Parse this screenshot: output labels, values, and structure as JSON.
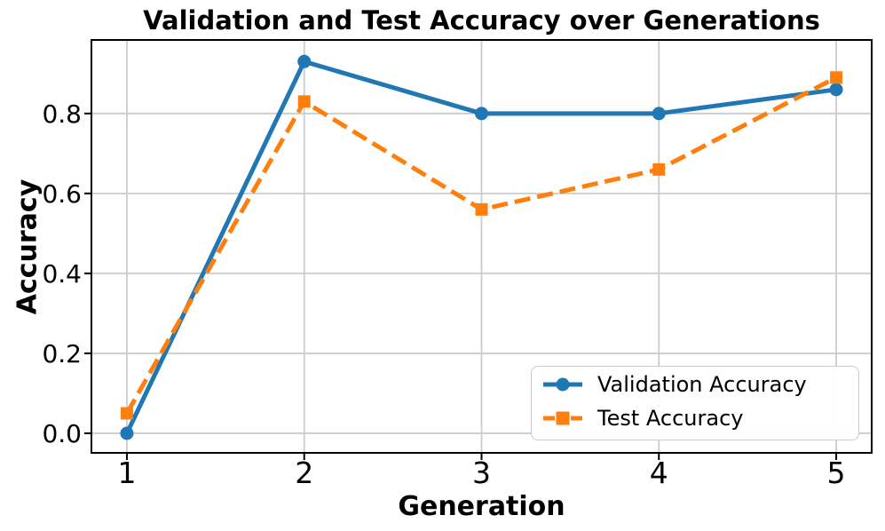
{
  "chart_data": {
    "type": "line",
    "title": "Validation and Test Accuracy over Generations",
    "xlabel": "Generation",
    "ylabel": "Accuracy",
    "x": [
      1,
      2,
      3,
      4,
      5
    ],
    "series": [
      {
        "name": "Validation Accuracy",
        "color": "#1f77b4",
        "line_style": "solid",
        "marker": "circle",
        "values": [
          0.0,
          0.93,
          0.8,
          0.8,
          0.86
        ]
      },
      {
        "name": "Test Accuracy",
        "color": "#ff7f0e",
        "line_style": "dashed",
        "marker": "square",
        "values": [
          0.05,
          0.83,
          0.56,
          0.66,
          0.89
        ]
      }
    ],
    "xtick_values": [
      1,
      2,
      3,
      4,
      5
    ],
    "xtick_labels": [
      "1",
      "2",
      "3",
      "4",
      "5"
    ],
    "ytick_values": [
      0.0,
      0.2,
      0.4,
      0.6,
      0.8
    ],
    "ytick_labels": [
      "0.0",
      "0.2",
      "0.4",
      "0.6",
      "0.8"
    ],
    "xlim": [
      0.8,
      5.2
    ],
    "ylim": [
      -0.049,
      0.984
    ],
    "grid": true,
    "grid_color": "#cccccc",
    "axis_color": "#000000",
    "background_color": "#ffffff",
    "legend_position": "lower right"
  }
}
